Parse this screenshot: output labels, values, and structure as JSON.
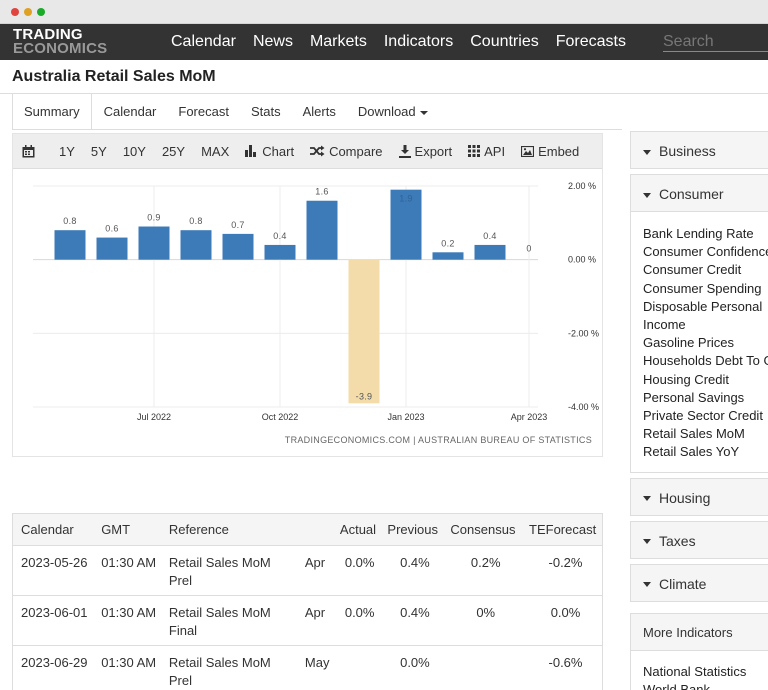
{
  "navbar": {
    "logo_line1": "TRADING",
    "logo_line2": "ECONOMICS",
    "items": [
      "Calendar",
      "News",
      "Markets",
      "Indicators",
      "Countries",
      "Forecasts"
    ],
    "search_placeholder": "Search"
  },
  "page": {
    "title": "Australia Retail Sales MoM"
  },
  "tabs": [
    {
      "label": "Summary"
    },
    {
      "label": "Calendar"
    },
    {
      "label": "Forecast"
    },
    {
      "label": "Stats"
    },
    {
      "label": "Alerts"
    },
    {
      "label": "Download"
    }
  ],
  "toolbar": {
    "ranges": [
      "1Y",
      "5Y",
      "10Y",
      "25Y",
      "MAX"
    ],
    "chart_label": "Chart",
    "compare_label": "Compare",
    "export_label": "Export",
    "api_label": "API",
    "embed_label": "Embed"
  },
  "chart_data": {
    "type": "bar",
    "values": [
      0.8,
      0.6,
      0.9,
      0.8,
      0.7,
      0.4,
      1.6,
      -3.9,
      1.9,
      0.2,
      0.4,
      0
    ],
    "labels": [
      "0.8",
      "0.6",
      "0.9",
      "0.8",
      "0.7",
      "0.4",
      "1.6",
      "-3.9",
      "1.9",
      "0.2",
      "0.4",
      "0"
    ],
    "x_ticks": [
      "Jul 2022",
      "Oct 2022",
      "Jan 2023",
      "Apr 2023"
    ],
    "y_ticks": [
      "2.00 %",
      "0.00 %",
      "-2.00 %",
      "-4.00 %"
    ],
    "ylim": [
      -4,
      2
    ],
    "colors": {
      "positive": "#3d7ab8",
      "negative": "#f3dcaa"
    },
    "source": "TRADINGECONOMICS.COM | AUSTRALIAN BUREAU OF STATISTICS"
  },
  "calendar": {
    "headers": [
      "Calendar",
      "GMT",
      "Reference",
      "",
      "Actual",
      "Previous",
      "Consensus",
      "TEForecast"
    ],
    "rows": [
      {
        "date": "2023-05-26",
        "time": "01:30 AM",
        "ref1": "Retail Sales MoM",
        "ref2": "Prel",
        "period": "Apr",
        "actual": "0.0%",
        "previous": "0.4%",
        "consensus": "0.2%",
        "forecast": "-0.2%"
      },
      {
        "date": "2023-06-01",
        "time": "01:30 AM",
        "ref1": "Retail Sales MoM",
        "ref2": "Final",
        "period": "Apr",
        "actual": "0.0%",
        "previous": "0.4%",
        "consensus": "0%",
        "forecast": "0.0%"
      },
      {
        "date": "2023-06-29",
        "time": "01:30 AM",
        "ref1": "Retail Sales MoM",
        "ref2": "Prel",
        "period": "May",
        "actual": "",
        "previous": "0.0%",
        "consensus": "",
        "forecast": "-0.6%"
      }
    ]
  },
  "sidebar": {
    "business": "Business",
    "consumer": "Consumer",
    "consumer_items": [
      "Bank Lending Rate",
      "Consumer Confidence",
      "Consumer Credit",
      "Consumer Spending",
      "Disposable Personal",
      "Income",
      "Gasoline Prices",
      "Households Debt To G",
      "Housing Credit",
      "Personal Savings",
      "Private Sector Credit",
      "Retail Sales MoM",
      "Retail Sales YoY"
    ],
    "housing": "Housing",
    "taxes": "Taxes",
    "climate": "Climate",
    "more_indicators": "More Indicators",
    "more_items": [
      "National Statistics",
      "World Bank"
    ]
  }
}
